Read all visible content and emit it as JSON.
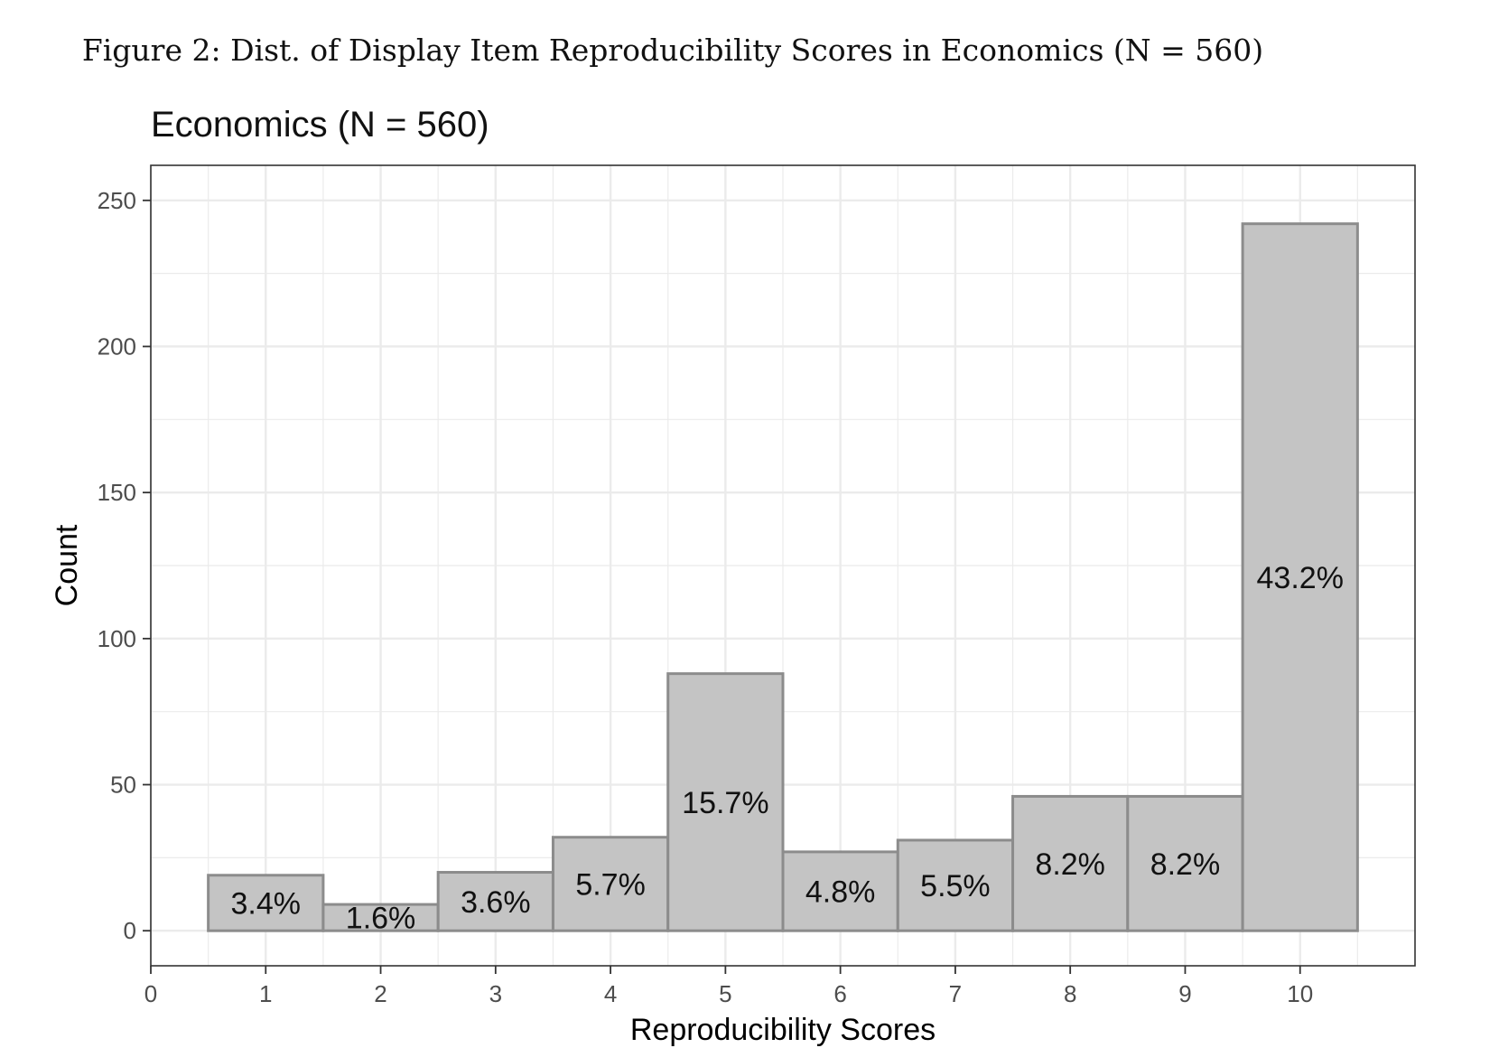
{
  "figure": {
    "caption": "Figure 2: Dist. of Display Item Reproducibility Scores in Economics (N = 560)"
  },
  "chart_data": {
    "type": "bar",
    "title": "Economics (N = 560)",
    "xlabel": "Reproducibility Scores",
    "ylabel": "Count",
    "categories": [
      1,
      2,
      3,
      4,
      5,
      6,
      7,
      8,
      9,
      10
    ],
    "values": [
      19,
      9,
      20,
      32,
      88,
      27,
      31,
      46,
      46,
      242
    ],
    "labels": [
      "3.4%",
      "1.6%",
      "3.6%",
      "5.7%",
      "15.7%",
      "4.8%",
      "5.5%",
      "8.2%",
      "8.2%",
      "43.2%"
    ],
    "x_ticks": [
      0,
      1,
      2,
      3,
      4,
      5,
      6,
      7,
      8,
      9,
      10
    ],
    "y_ticks": [
      0,
      50,
      100,
      150,
      200,
      250
    ],
    "xlim": [
      0,
      11
    ],
    "ylim": [
      -12,
      262
    ],
    "grid": true,
    "colors": {
      "bar_fill": "#c4c4c4",
      "bar_stroke": "#8c8c8c",
      "grid": "#ebebeb"
    }
  }
}
